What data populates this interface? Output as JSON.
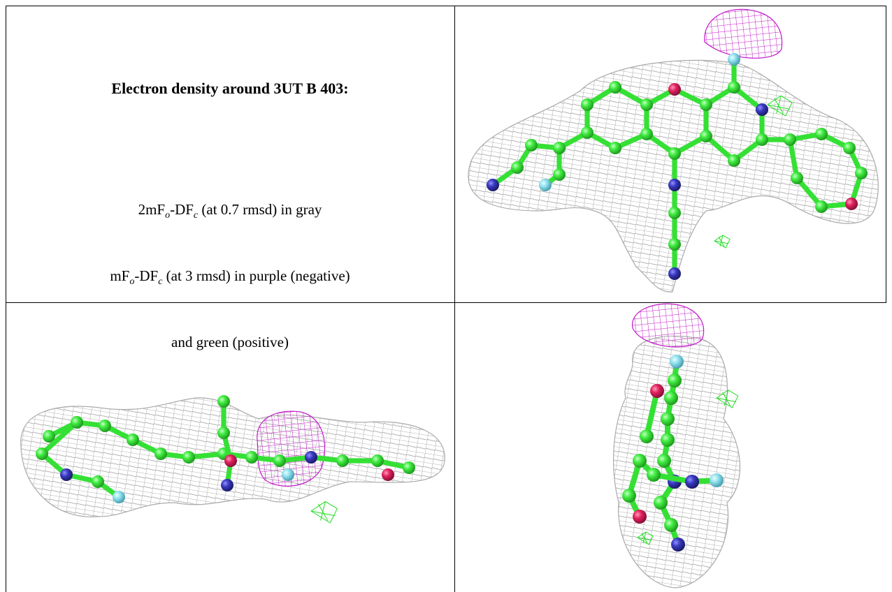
{
  "figure": {
    "title": "Electron density around 3UT B 403:",
    "legend_lines": [
      [
        "2mF",
        "o",
        "-DF",
        "c",
        " (at 0.7 rmsd) in gray"
      ],
      [
        "mF",
        "o",
        "-DF",
        "c",
        " (at 3 rmsd) in purple (negative)"
      ],
      [
        "and green (positive)"
      ]
    ]
  }
}
